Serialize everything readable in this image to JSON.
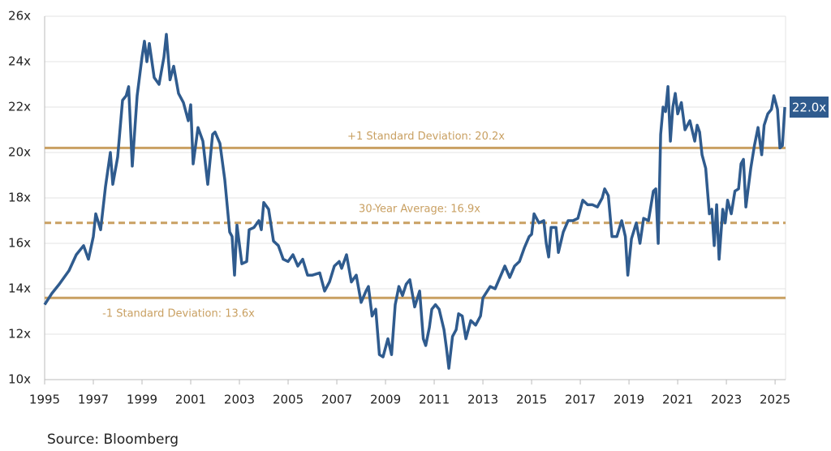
{
  "chart_data": {
    "type": "line",
    "x": [
      1995.0,
      1995.3,
      1995.6,
      1995.8,
      1996.0,
      1996.3,
      1996.6,
      1996.8,
      1997.0,
      1997.1,
      1997.3,
      1997.5,
      1997.7,
      1997.8,
      1998.0,
      1998.2,
      1998.35,
      1998.45,
      1998.6,
      1998.8,
      1999.0,
      1999.1,
      1999.2,
      1999.3,
      1999.5,
      1999.7,
      1999.9,
      2000.0,
      2000.15,
      2000.3,
      2000.5,
      2000.7,
      2000.9,
      2001.0,
      2001.1,
      2001.3,
      2001.5,
      2001.7,
      2001.9,
      2002.0,
      2002.2,
      2002.4,
      2002.6,
      2002.7,
      2002.8,
      2002.9,
      2003.1,
      2003.3,
      2003.4,
      2003.6,
      2003.8,
      2003.9,
      2004.0,
      2004.2,
      2004.4,
      2004.6,
      2004.8,
      2005.0,
      2005.2,
      2005.4,
      2005.6,
      2005.8,
      2006.0,
      2006.3,
      2006.5,
      2006.7,
      2006.9,
      2007.1,
      2007.2,
      2007.4,
      2007.6,
      2007.8,
      2008.0,
      2008.2,
      2008.3,
      2008.45,
      2008.6,
      2008.75,
      2008.9,
      2009.1,
      2009.25,
      2009.4,
      2009.55,
      2009.7,
      2009.85,
      2010.0,
      2010.2,
      2010.4,
      2010.55,
      2010.65,
      2010.8,
      2010.9,
      2011.05,
      2011.2,
      2011.4,
      2011.5,
      2011.6,
      2011.75,
      2011.9,
      2012.0,
      2012.15,
      2012.3,
      2012.5,
      2012.7,
      2012.9,
      2013.0,
      2013.3,
      2013.5,
      2013.7,
      2013.9,
      2014.1,
      2014.3,
      2014.5,
      2014.7,
      2014.9,
      2015.0,
      2015.1,
      2015.3,
      2015.5,
      2015.6,
      2015.7,
      2015.8,
      2016.0,
      2016.1,
      2016.3,
      2016.5,
      2016.7,
      2016.9,
      2017.1,
      2017.3,
      2017.5,
      2017.7,
      2017.9,
      2018.0,
      2018.15,
      2018.3,
      2018.5,
      2018.7,
      2018.85,
      2018.95,
      2019.1,
      2019.3,
      2019.45,
      2019.6,
      2019.8,
      2020.0,
      2020.1,
      2020.2,
      2020.3,
      2020.4,
      2020.5,
      2020.6,
      2020.7,
      2020.8,
      2020.9,
      2021.0,
      2021.15,
      2021.3,
      2021.5,
      2021.7,
      2021.8,
      2021.9,
      2022.0,
      2022.15,
      2022.3,
      2022.4,
      2022.5,
      2022.6,
      2022.7,
      2022.85,
      2022.95,
      2023.05,
      2023.2,
      2023.35,
      2023.5,
      2023.6,
      2023.7,
      2023.8,
      2024.0,
      2024.15,
      2024.3,
      2024.45,
      2024.55,
      2024.7,
      2024.85,
      2024.95,
      2025.1,
      2025.2,
      2025.3,
      2025.4
    ],
    "series": [
      {
        "color": "#2f5b8e",
        "values": [
          13.3,
          13.8,
          14.2,
          14.5,
          14.8,
          15.5,
          15.9,
          15.3,
          16.3,
          17.3,
          16.6,
          18.5,
          20.0,
          18.6,
          19.8,
          22.3,
          22.5,
          22.9,
          19.4,
          22.5,
          24.2,
          24.9,
          24.0,
          24.8,
          23.3,
          23.0,
          24.2,
          25.2,
          23.2,
          23.8,
          22.6,
          22.2,
          21.4,
          22.1,
          19.5,
          21.1,
          20.5,
          18.6,
          20.8,
          20.9,
          20.4,
          18.8,
          16.5,
          16.3,
          14.6,
          16.8,
          15.1,
          15.2,
          16.6,
          16.7,
          17.0,
          16.6,
          17.8,
          17.5,
          16.1,
          15.9,
          15.3,
          15.2,
          15.5,
          15.0,
          15.3,
          14.6,
          14.6,
          14.7,
          13.9,
          14.3,
          15.0,
          15.2,
          14.9,
          15.5,
          14.3,
          14.6,
          13.4,
          13.9,
          14.1,
          12.8,
          13.1,
          11.1,
          11.0,
          11.8,
          11.1,
          13.3,
          14.1,
          13.7,
          14.2,
          14.4,
          13.2,
          13.9,
          11.8,
          11.5,
          12.3,
          13.1,
          13.3,
          13.1,
          12.2,
          11.4,
          10.5,
          11.9,
          12.2,
          12.9,
          12.8,
          11.8,
          12.6,
          12.4,
          12.8,
          13.6,
          14.1,
          14.0,
          14.5,
          15.0,
          14.5,
          15.0,
          15.2,
          15.8,
          16.3,
          16.4,
          17.3,
          16.9,
          17.0,
          16.0,
          15.4,
          16.7,
          16.7,
          15.6,
          16.5,
          17.0,
          17.0,
          17.1,
          17.9,
          17.7,
          17.7,
          17.6,
          18.0,
          18.4,
          18.1,
          16.3,
          16.3,
          17.0,
          16.3,
          14.6,
          16.2,
          16.9,
          16.0,
          17.1,
          17.0,
          18.3,
          18.4,
          16.0,
          20.8,
          22.0,
          21.8,
          22.9,
          20.5,
          22.0,
          22.6,
          21.7,
          22.2,
          21.0,
          21.4,
          20.5,
          21.2,
          20.9,
          19.9,
          19.3,
          17.3,
          17.5,
          15.9,
          17.7,
          15.3,
          17.5,
          16.9,
          17.9,
          17.3,
          18.3,
          18.4,
          19.5,
          19.7,
          17.6,
          19.3,
          20.3,
          21.1,
          19.9,
          21.2,
          21.7,
          21.9,
          22.5,
          21.9,
          20.2,
          20.3,
          22.0
        ]
      }
    ],
    "last_label": "22.0x",
    "reference_lines": [
      {
        "label": "+1 Standard Deviation: 20.2x",
        "value": 20.2,
        "style": "solid",
        "color": "#c9a062"
      },
      {
        "label": "30-Year Average: 16.9x",
        "value": 16.9,
        "style": "dashed",
        "color": "#c9a062"
      },
      {
        "label": "-1 Standard Deviation: 13.6x",
        "value": 13.6,
        "style": "solid",
        "color": "#c9a062"
      }
    ],
    "xlim": [
      1995,
      2025.43
    ],
    "xticks": [
      1995,
      1997,
      1999,
      2001,
      2003,
      2005,
      2007,
      2009,
      2011,
      2013,
      2015,
      2017,
      2019,
      2021,
      2023,
      2025
    ],
    "ylim": [
      10,
      26
    ],
    "yticks": [
      {
        "value": 10,
        "label": "10x"
      },
      {
        "value": 12,
        "label": "12x"
      },
      {
        "value": 14,
        "label": "14x"
      },
      {
        "value": 16,
        "label": "16x"
      },
      {
        "value": 18,
        "label": "18x"
      },
      {
        "value": 20,
        "label": "20x"
      },
      {
        "value": 22,
        "label": "22x"
      },
      {
        "value": 24,
        "label": "24x"
      },
      {
        "value": 26,
        "label": "26x"
      }
    ],
    "grid": true,
    "source": "Source: Bloomberg"
  }
}
